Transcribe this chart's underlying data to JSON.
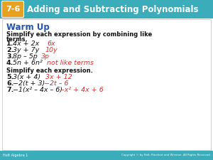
{
  "header_bg": "#3aacba",
  "header_badge_bg": "#e8a020",
  "header_badge_border": "#ffffff",
  "header_badge_text": "7-6",
  "header_title": "Adding and Subtracting Polynomials",
  "header_text_color": "#ffffff",
  "body_bg": "#ffffff",
  "warm_up_color": "#2255aa",
  "warm_up_text": "Warm Up",
  "black_color": "#111111",
  "red_color": "#cc3333",
  "footer_bg": "#3aacba",
  "footer_text_color": "#ffffff",
  "footer_left": "Holt Algebra 1",
  "footer_right": "Copyright © by Holt, Rinehart and Winston. All Rights Reserved."
}
